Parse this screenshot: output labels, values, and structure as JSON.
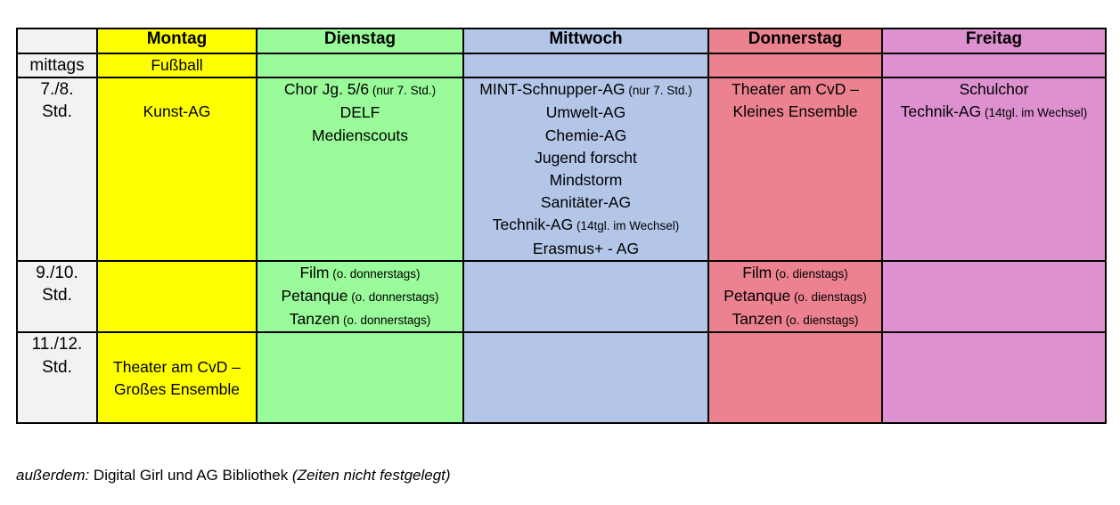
{
  "colors": {
    "monday": "#FFFF00",
    "tuesday": "#99FB99",
    "wednesday": "#B3C6E7",
    "thursday": "#EC8290",
    "friday": "#DE91D0",
    "time_column": "#F2F2F2",
    "border": "#000000",
    "background": "#FFFFFF",
    "text": "#000000"
  },
  "table": {
    "corner_label": "",
    "columns": [
      {
        "id": "monday",
        "label": "Montag"
      },
      {
        "id": "tuesday",
        "label": "Dienstag"
      },
      {
        "id": "wednesday",
        "label": "Mittwoch"
      },
      {
        "id": "thursday",
        "label": "Donnerstag"
      },
      {
        "id": "friday",
        "label": "Freitag"
      }
    ],
    "rows": [
      {
        "time_label_lines": [
          "mittags"
        ],
        "cells": {
          "monday": [
            {
              "main": "Fußball",
              "note": ""
            }
          ],
          "tuesday": [],
          "wednesday": [],
          "thursday": [],
          "friday": []
        }
      },
      {
        "time_label_lines": [
          "7./8.",
          "Std."
        ],
        "cells": {
          "monday": [
            {
              "main": "",
              "note": ""
            },
            {
              "main": "Kunst-AG",
              "note": ""
            }
          ],
          "tuesday": [
            {
              "main": "Chor Jg. 5/6",
              "note": "(nur 7. Std.)"
            },
            {
              "main": "DELF",
              "note": ""
            },
            {
              "main": "Medienscouts",
              "note": ""
            }
          ],
          "wednesday": [
            {
              "main": "MINT-Schnupper-AG",
              "note": "(nur 7. Std.)"
            },
            {
              "main": "Umwelt-AG",
              "note": ""
            },
            {
              "main": "Chemie-AG",
              "note": ""
            },
            {
              "main": "Jugend forscht",
              "note": ""
            },
            {
              "main": "Mindstorm",
              "note": ""
            },
            {
              "main": "Sanitäter-AG",
              "note": ""
            },
            {
              "main": "Technik-AG",
              "note": "(14tgl. im Wechsel)"
            },
            {
              "main": "Erasmus+ - AG",
              "note": ""
            }
          ],
          "thursday": [
            {
              "main": "Theater am CvD –",
              "note": ""
            },
            {
              "main": "Kleines Ensemble",
              "note": ""
            }
          ],
          "friday": [
            {
              "main": "Schulchor",
              "note": ""
            },
            {
              "main": "Technik-AG",
              "note": "(14tgl. im Wechsel)"
            }
          ]
        }
      },
      {
        "time_label_lines": [
          "9./10.",
          "Std."
        ],
        "cells": {
          "monday": [],
          "tuesday": [
            {
              "main": "Film",
              "note": "(o. donnerstags)"
            },
            {
              "main": "Petanque",
              "note": "(o. donnerstags)"
            },
            {
              "main": "Tanzen",
              "note": "(o. donnerstags)"
            }
          ],
          "wednesday": [],
          "thursday": [
            {
              "main": "Film",
              "note": "(o. dienstags)"
            },
            {
              "main": "Petanque",
              "note": "(o. dienstags)"
            },
            {
              "main": "Tanzen",
              "note": "(o. dienstags)"
            }
          ],
          "friday": []
        }
      },
      {
        "time_label_lines": [
          "11./12.",
          "Std."
        ],
        "cells": {
          "monday": [
            {
              "main": "",
              "note": ""
            },
            {
              "main": "Theater am CvD –",
              "note": ""
            },
            {
              "main": "Großes Ensemble",
              "note": ""
            }
          ],
          "tuesday": [],
          "wednesday": [],
          "thursday": [],
          "friday": []
        }
      }
    ]
  },
  "footer": {
    "prefix_italic": "außerdem:",
    "middle": " Digital Girl und AG Bibliothek ",
    "suffix_italic": "(Zeiten nicht festgelegt)"
  }
}
